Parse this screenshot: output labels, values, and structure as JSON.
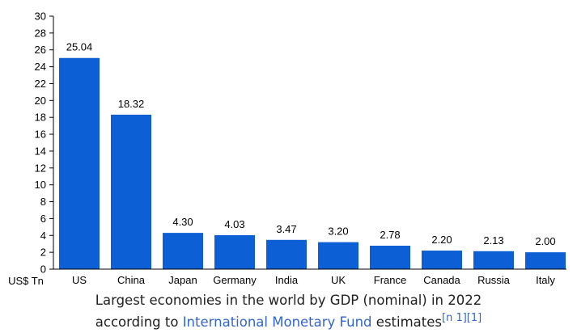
{
  "chart_data": {
    "type": "bar",
    "categories": [
      "US",
      "China",
      "Japan",
      "Germany",
      "India",
      "UK",
      "France",
      "Canada",
      "Russia",
      "Italy"
    ],
    "values": [
      25.04,
      18.32,
      4.3,
      4.03,
      3.47,
      3.2,
      2.78,
      2.2,
      2.13,
      2.0
    ],
    "value_labels": [
      "25.04",
      "18.32",
      "4.30",
      "4.03",
      "3.47",
      "3.20",
      "2.78",
      "2.20",
      "2.13",
      "2.00"
    ],
    "ylabel": "US$ Tn",
    "ylim": [
      0,
      30
    ],
    "yticks": [
      0,
      2,
      4,
      6,
      8,
      10,
      12,
      14,
      16,
      18,
      20,
      22,
      24,
      26,
      28,
      30
    ],
    "grid": false,
    "bar_color": "#0c5fd4"
  },
  "caption": {
    "line1": "Largest economies in the world by GDP (nominal) in 2022",
    "line2_prefix": "according to ",
    "link_text": "International Monetary Fund",
    "line2_suffix": " estimates",
    "refs": "[n 1][1]",
    "link_color": "#3366cc"
  }
}
